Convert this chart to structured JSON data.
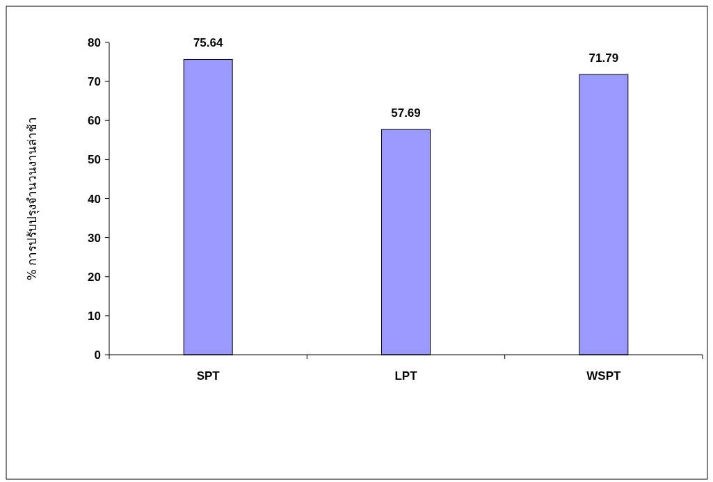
{
  "chart_data": {
    "type": "bar",
    "ylabel": "% การปรับปรุงจำนวนงานล่าช้า",
    "categories": [
      "SPT",
      "LPT",
      "WSPT"
    ],
    "values": [
      75.64,
      57.69,
      71.79
    ],
    "color": "#9999ff",
    "ylim": [
      0,
      80
    ],
    "yticks": [
      0,
      10,
      20,
      30,
      40,
      50,
      60,
      70,
      80
    ],
    "data_labels": true,
    "grid": false
  }
}
